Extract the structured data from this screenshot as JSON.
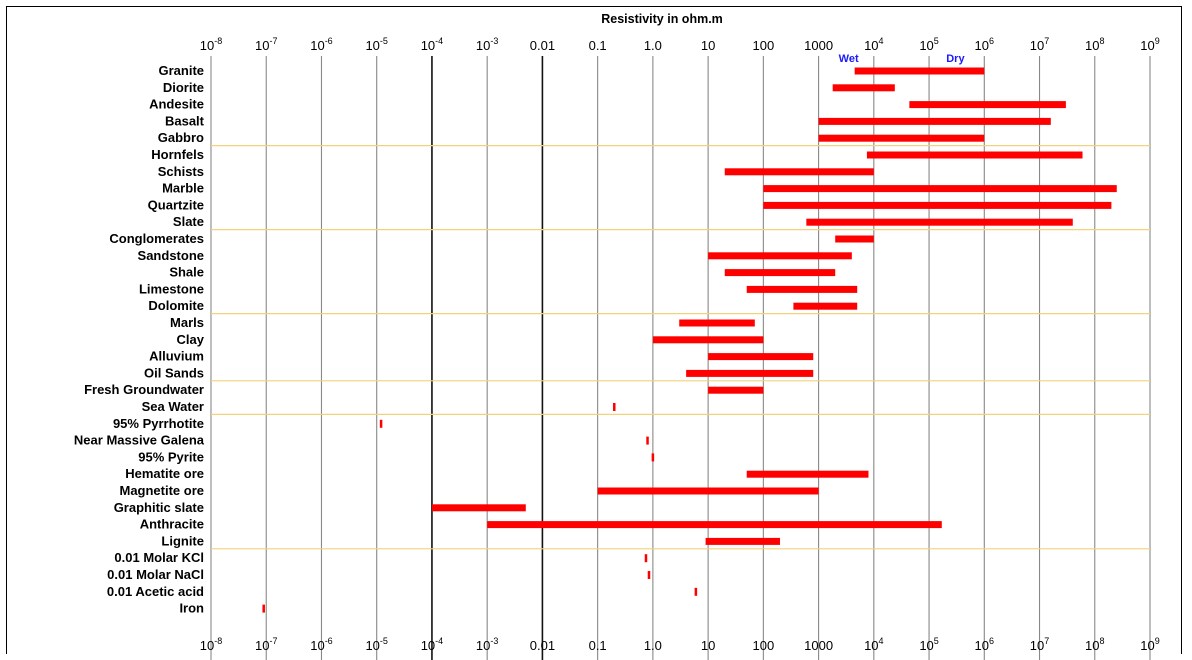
{
  "chart_data": {
    "type": "range_bar",
    "title": "Resistivity in ohm.m",
    "x_scale": "log10",
    "xlim": [
      1e-08,
      1000000000.0
    ],
    "x_ticks": [
      {
        "base": "10",
        "exp": "-8",
        "value": 1e-08
      },
      {
        "base": "10",
        "exp": "-7",
        "value": 1e-07
      },
      {
        "base": "10",
        "exp": "-6",
        "value": 1e-06
      },
      {
        "base": "10",
        "exp": "-5",
        "value": 1e-05
      },
      {
        "base": "10",
        "exp": "-4",
        "value": 0.0001
      },
      {
        "base": "10",
        "exp": "-3",
        "value": 0.001
      },
      {
        "base": "0.01",
        "exp": "",
        "value": 0.01
      },
      {
        "base": "0.1",
        "exp": "",
        "value": 0.1
      },
      {
        "base": "1.0",
        "exp": "",
        "value": 1
      },
      {
        "base": "10",
        "exp": "",
        "value": 10
      },
      {
        "base": "100",
        "exp": "",
        "value": 100
      },
      {
        "base": "1000",
        "exp": "",
        "value": 1000
      },
      {
        "base": "10",
        "exp": "4",
        "value": 10000.0
      },
      {
        "base": "10",
        "exp": "5",
        "value": 100000.0
      },
      {
        "base": "10",
        "exp": "6",
        "value": 1000000.0
      },
      {
        "base": "10",
        "exp": "7",
        "value": 10000000.0
      },
      {
        "base": "10",
        "exp": "8",
        "value": 100000000.0
      },
      {
        "base": "10",
        "exp": "9",
        "value": 1000000000.0
      }
    ],
    "annotations": [
      {
        "text": "Wet",
        "value": 3500
      },
      {
        "text": "Dry",
        "value": 300000
      }
    ],
    "group_separators_after": [
      "Gabbro",
      "Slate",
      "Dolomite",
      "Oil Sands",
      "Sea Water",
      "Lignite"
    ],
    "bar_color": "#ff0000",
    "gridline_color": "#888888",
    "separator_color": "#f2d27a",
    "items": [
      {
        "label": "Granite",
        "min": 4500,
        "max": 1000000
      },
      {
        "label": "Diorite",
        "min": 1800,
        "max": 24000
      },
      {
        "label": "Andesite",
        "min": 44000,
        "max": 30000000
      },
      {
        "label": "Basalt",
        "min": 1000,
        "max": 16000000
      },
      {
        "label": "Gabbro",
        "min": 1000,
        "max": 1000000
      },
      {
        "label": "Hornfels",
        "min": 7500,
        "max": 60000000
      },
      {
        "label": "Schists",
        "min": 20,
        "max": 10000
      },
      {
        "label": "Marble",
        "min": 100,
        "max": 250000000
      },
      {
        "label": "Quartzite",
        "min": 100,
        "max": 200000000
      },
      {
        "label": "Slate",
        "min": 600,
        "max": 40000000
      },
      {
        "label": "Conglomerates",
        "min": 2000,
        "max": 10000
      },
      {
        "label": "Sandstone",
        "min": 10,
        "max": 4000
      },
      {
        "label": "Shale",
        "min": 20,
        "max": 2000
      },
      {
        "label": "Limestone",
        "min": 50,
        "max": 5000
      },
      {
        "label": "Dolomite",
        "min": 350,
        "max": 5000
      },
      {
        "label": "Marls",
        "min": 3,
        "max": 70
      },
      {
        "label": "Clay",
        "min": 1,
        "max": 100
      },
      {
        "label": "Alluvium",
        "min": 10,
        "max": 800
      },
      {
        "label": "Oil Sands",
        "min": 4,
        "max": 800
      },
      {
        "label": "Fresh Groundwater",
        "min": 10,
        "max": 100
      },
      {
        "label": "Sea Water",
        "min": 0.2,
        "max": 0.2
      },
      {
        "label": "95% Pyrrhotite",
        "min": 1.2e-05,
        "max": 1.2e-05
      },
      {
        "label": "Near Massive Galena",
        "min": 0.8,
        "max": 0.8
      },
      {
        "label": "95% Pyrite",
        "min": 1,
        "max": 1
      },
      {
        "label": "Hematite ore",
        "min": 50,
        "max": 8000
      },
      {
        "label": "Magnetite ore",
        "min": 0.1,
        "max": 1000
      },
      {
        "label": "Graphitic slate",
        "min": 0.0001,
        "max": 0.005
      },
      {
        "label": "Anthracite",
        "min": 0.001,
        "max": 170000
      },
      {
        "label": "Lignite",
        "min": 9,
        "max": 200
      },
      {
        "label": "0.01 Molar KCl",
        "min": 0.75,
        "max": 0.75
      },
      {
        "label": "0.01 Molar NaCl",
        "min": 0.85,
        "max": 0.85
      },
      {
        "label": "0.01 Acetic acid",
        "min": 6,
        "max": 6
      },
      {
        "label": "Iron",
        "min": 9e-08,
        "max": 9e-08
      }
    ]
  }
}
